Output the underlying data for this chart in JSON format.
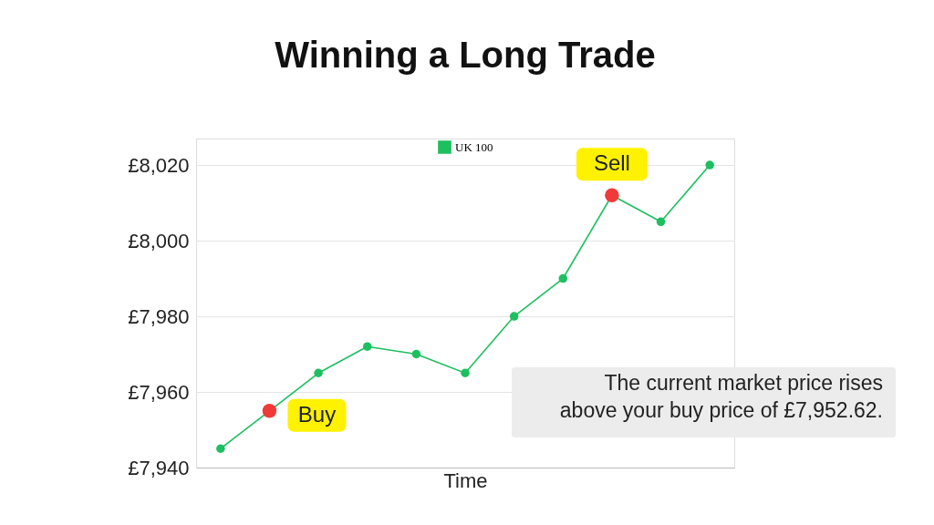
{
  "chart_data": {
    "type": "line",
    "title": "Winning a Long Trade",
    "xlabel": "Time",
    "categories": [
      null,
      null,
      null,
      null,
      null,
      null,
      null,
      null,
      null,
      null,
      null
    ],
    "series": [
      {
        "name": "UK 100",
        "color": "#1dbf5f",
        "colors": [
          "#1dbf5f",
          "#f03a3a",
          "#1dbf5f",
          "#1dbf5f",
          "#1dbf5f",
          "#1dbf5f",
          "#1dbf5f",
          "#1dbf5f",
          "#f03a3a",
          "#1dbf5f",
          "#1dbf5f"
        ],
        "values": [
          7945,
          7955,
          7965,
          7972,
          7970,
          7965,
          7980,
          7990,
          8012,
          8005,
          8020
        ]
      }
    ],
    "ylim": [
      7940,
      8027
    ],
    "yticks": [
      {
        "value": 7940,
        "label": "£7,940"
      },
      {
        "value": 7960,
        "label": "£7,960"
      },
      {
        "value": 7980,
        "label": "£7,980"
      },
      {
        "value": 8000,
        "label": "£8,000"
      },
      {
        "value": 8020,
        "label": "£8,020"
      }
    ],
    "grid": "y",
    "legend": "top",
    "marker": "circle",
    "line_style": "solid",
    "tick_labels": "y",
    "annotations": [
      "Buy",
      "Sell",
      "The current market price rises above your buy price of £7,952.62."
    ]
  }
}
